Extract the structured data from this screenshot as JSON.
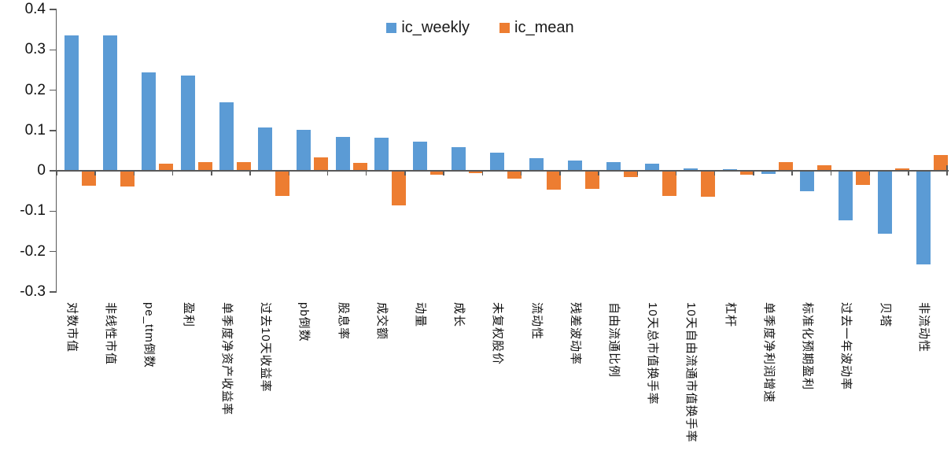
{
  "chart_data": {
    "type": "bar",
    "title": "",
    "xlabel": "",
    "ylabel": "",
    "ylim": [
      -0.3,
      0.4
    ],
    "y_tick_step": 0.1,
    "y_tick_labels": [
      "0.4",
      "0.3",
      "0.2",
      "0.1",
      "0",
      "-0.1",
      "-0.2",
      "-0.3"
    ],
    "grid": false,
    "legend_position": "top-center",
    "x_label_rotation_deg": 90,
    "categories": [
      "对数市值",
      "非线性市值",
      "pe_ttm倒数",
      "盈利",
      "单季度净资产收益率",
      "过去10天收益率",
      "pb倒数",
      "股息率",
      "成交额",
      "动量",
      "成长",
      "未复权股价",
      "流动性",
      "残差波动率",
      "自由流通比例",
      "10天总市值换手率",
      "10天自由流通市值换手率",
      "杠杆",
      "单季度净利润增速",
      "标准化预期盈利",
      "过去一年波动率",
      "贝塔",
      "非流动性"
    ],
    "series": [
      {
        "name": "ic_weekly",
        "color": "#5B9BD5",
        "values": [
          0.335,
          0.335,
          0.243,
          0.236,
          0.17,
          0.107,
          0.102,
          0.084,
          0.081,
          0.072,
          0.059,
          0.044,
          0.031,
          0.025,
          0.021,
          0.018,
          0.006,
          0.003,
          -0.005,
          -0.048,
          -0.12,
          -0.155,
          -0.23
        ]
      },
      {
        "name": "ic_mean",
        "color": "#ED7D31",
        "values": [
          -0.035,
          -0.038,
          0.017,
          0.021,
          0.022,
          -0.06,
          0.034,
          0.02,
          -0.083,
          -0.007,
          -0.004,
          -0.017,
          -0.044,
          -0.042,
          -0.013,
          -0.061,
          -0.063,
          -0.008,
          0.021,
          0.013,
          -0.033,
          0.005,
          0.04
        ]
      }
    ],
    "colors": {
      "axis": "#595959",
      "text": "#111111"
    }
  }
}
